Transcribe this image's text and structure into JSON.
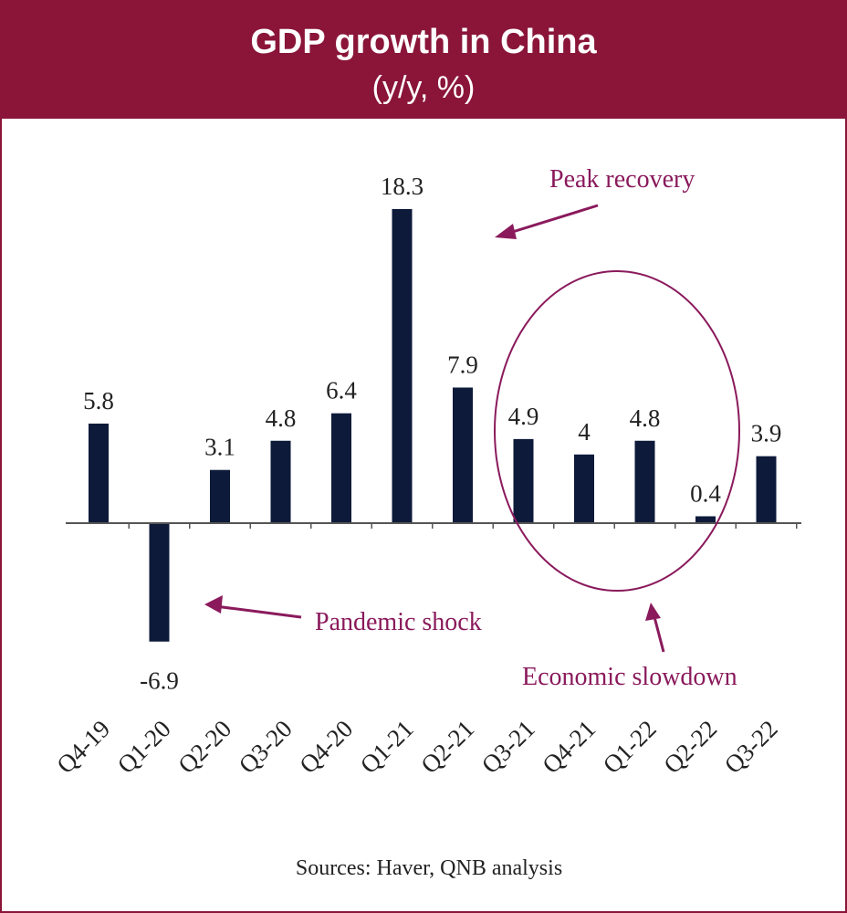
{
  "chart_data": {
    "type": "bar",
    "title": "GDP growth in China",
    "subtitle": "(y/y, %)",
    "categories": [
      "Q4-19",
      "Q1-20",
      "Q2-20",
      "Q3-20",
      "Q4-20",
      "Q1-21",
      "Q2-21",
      "Q3-21",
      "Q4-21",
      "Q1-22",
      "Q2-22",
      "Q3-22"
    ],
    "value_labels": [
      "5.8",
      "-6.9",
      "3.1",
      "4.8",
      "6.4",
      "18.3",
      "7.9",
      "4.9",
      "4",
      "4.8",
      "0.4",
      "3.9"
    ],
    "values": [
      5.8,
      -6.9,
      3.1,
      4.8,
      6.4,
      18.3,
      7.9,
      4.9,
      4.0,
      4.8,
      0.4,
      3.9
    ],
    "xlabel": "",
    "ylabel": "",
    "grid": false,
    "bar_color": "#0d1a3a",
    "annotations": [
      {
        "text": "Peak recovery",
        "target": "Q1-21"
      },
      {
        "text": "Pandemic shock",
        "target": "Q1-20"
      },
      {
        "text": "Economic slowdown",
        "target": "Q3-21 to Q2-22"
      }
    ],
    "annotation_color": "#8a1a5c",
    "source": "Sources: Haver, QNB analysis"
  }
}
